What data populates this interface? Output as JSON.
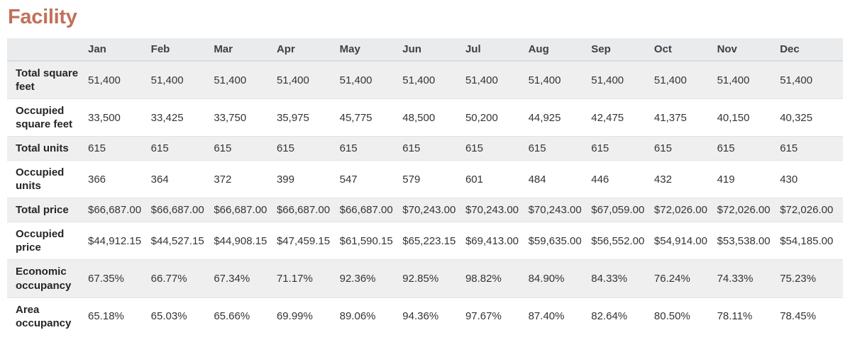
{
  "page": {
    "title": "Facility",
    "accent_color": "#c1705a"
  },
  "table": {
    "columns": [
      "Jan",
      "Feb",
      "Mar",
      "Apr",
      "May",
      "Jun",
      "Jul",
      "Aug",
      "Sep",
      "Oct",
      "Nov",
      "Dec"
    ],
    "rows": [
      {
        "label": "Total square feet",
        "values": [
          "51,400",
          "51,400",
          "51,400",
          "51,400",
          "51,400",
          "51,400",
          "51,400",
          "51,400",
          "51,400",
          "51,400",
          "51,400",
          "51,400"
        ]
      },
      {
        "label": "Occupied square feet",
        "values": [
          "33,500",
          "33,425",
          "33,750",
          "35,975",
          "45,775",
          "48,500",
          "50,200",
          "44,925",
          "42,475",
          "41,375",
          "40,150",
          "40,325"
        ]
      },
      {
        "label": "Total units",
        "values": [
          "615",
          "615",
          "615",
          "615",
          "615",
          "615",
          "615",
          "615",
          "615",
          "615",
          "615",
          "615"
        ]
      },
      {
        "label": "Occupied units",
        "values": [
          "366",
          "364",
          "372",
          "399",
          "547",
          "579",
          "601",
          "484",
          "446",
          "432",
          "419",
          "430"
        ]
      },
      {
        "label": "Total price",
        "values": [
          "$66,687.00",
          "$66,687.00",
          "$66,687.00",
          "$66,687.00",
          "$66,687.00",
          "$70,243.00",
          "$70,243.00",
          "$70,243.00",
          "$67,059.00",
          "$72,026.00",
          "$72,026.00",
          "$72,026.00"
        ]
      },
      {
        "label": "Occupied price",
        "values": [
          "$44,912.15",
          "$44,527.15",
          "$44,908.15",
          "$47,459.15",
          "$61,590.15",
          "$65,223.15",
          "$69,413.00",
          "$59,635.00",
          "$56,552.00",
          "$54,914.00",
          "$53,538.00",
          "$54,185.00"
        ]
      },
      {
        "label": "Economic occupancy",
        "values": [
          "67.35%",
          "66.77%",
          "67.34%",
          "71.17%",
          "92.36%",
          "92.85%",
          "98.82%",
          "84.90%",
          "84.33%",
          "76.24%",
          "74.33%",
          "75.23%"
        ]
      },
      {
        "label": "Area occupancy",
        "values": [
          "65.18%",
          "65.03%",
          "65.66%",
          "69.99%",
          "89.06%",
          "94.36%",
          "97.67%",
          "87.40%",
          "82.64%",
          "80.50%",
          "78.11%",
          "78.45%"
        ]
      }
    ]
  }
}
